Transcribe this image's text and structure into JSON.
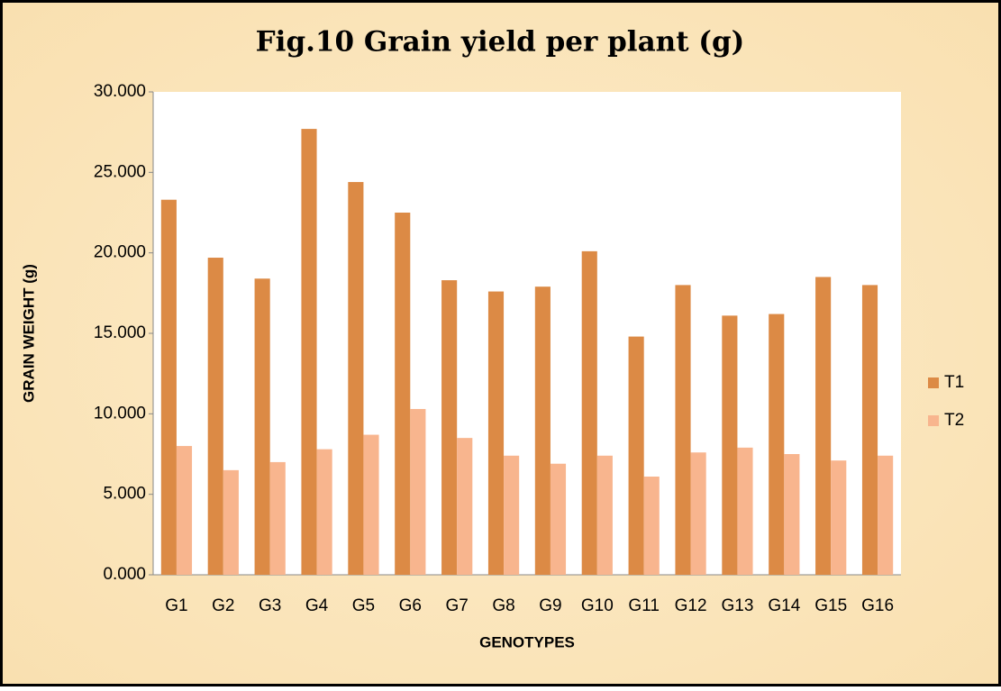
{
  "chart_data": {
    "type": "bar",
    "title": "Fig.10 Grain yield per plant (g)",
    "x_label": "GENOTYPES",
    "y_label": "GRAIN WEIGHT (g)",
    "categories": [
      "G1",
      "G2",
      "G3",
      "G4",
      "G5",
      "G6",
      "G7",
      "G8",
      "G9",
      "G10",
      "G11",
      "G12",
      "G13",
      "G14",
      "G15",
      "G16"
    ],
    "series": [
      {
        "name": "T1",
        "color": "#dc8a45",
        "values": [
          23.3,
          19.7,
          18.4,
          27.7,
          24.4,
          22.5,
          18.3,
          17.6,
          17.9,
          20.1,
          14.8,
          18.0,
          16.1,
          16.2,
          18.5,
          18.0
        ]
      },
      {
        "name": "T2",
        "color": "#f8b58e",
        "values": [
          8.0,
          6.5,
          7.0,
          7.8,
          8.7,
          10.3,
          8.5,
          7.4,
          6.9,
          7.4,
          6.1,
          7.6,
          7.9,
          7.5,
          7.1,
          7.4
        ]
      }
    ],
    "ylim": [
      0,
      30
    ],
    "yticks": [
      {
        "value": 0,
        "label": "0.000"
      },
      {
        "value": 5,
        "label": "5.000"
      },
      {
        "value": 10,
        "label": "10.000"
      },
      {
        "value": 15,
        "label": "15.000"
      },
      {
        "value": 20,
        "label": "20.000"
      },
      {
        "value": 25,
        "label": "25.000"
      },
      {
        "value": 30,
        "label": "30.000"
      }
    ],
    "grid": false,
    "legend": "right"
  }
}
